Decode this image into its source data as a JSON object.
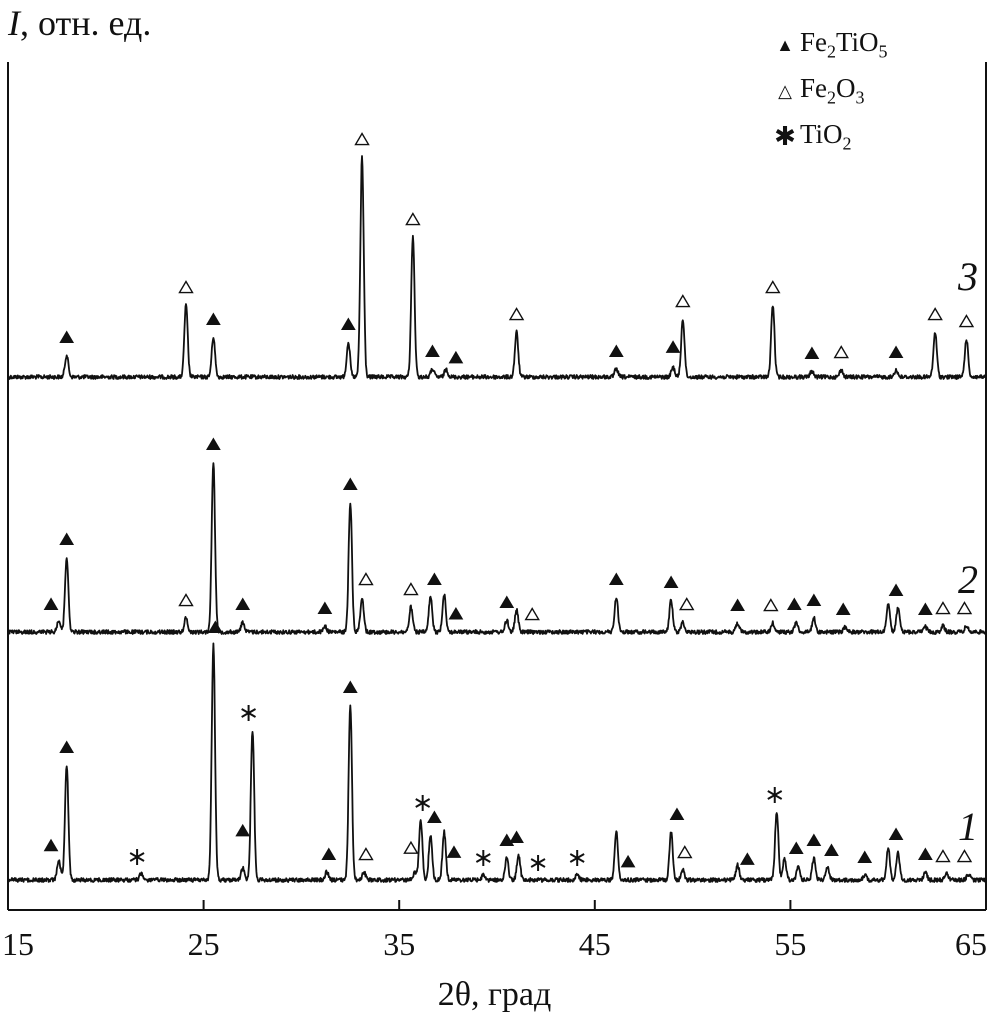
{
  "chart_data": {
    "type": "line",
    "title": "",
    "ylabel_symbol": "I",
    "ylabel_text": ", отн. ед.",
    "xlabel": "2θ, град",
    "xlim": [
      15,
      65
    ],
    "x_ticks": [
      15,
      25,
      35,
      45,
      55,
      65
    ],
    "legend": [
      {
        "marker": "filled-triangle",
        "text_html": "Fe<sub>2</sub>TiO<sub>5</sub>"
      },
      {
        "marker": "open-triangle",
        "text_html": "Fe<sub>2</sub>O<sub>3</sub>"
      },
      {
        "marker": "asterisk",
        "text_html": "TiO<sub>2</sub>"
      }
    ],
    "series": [
      {
        "name": "3",
        "baseline": 0,
        "peaks": [
          [
            18.0,
            22
          ],
          [
            24.1,
            72
          ],
          [
            25.5,
            40
          ],
          [
            32.4,
            35
          ],
          [
            33.1,
            220
          ],
          [
            35.7,
            140
          ],
          [
            36.7,
            8
          ],
          [
            37.4,
            8
          ],
          [
            41.0,
            45
          ],
          [
            46.1,
            8
          ],
          [
            49.0,
            10
          ],
          [
            49.5,
            58
          ],
          [
            54.1,
            72
          ],
          [
            56.1,
            6
          ],
          [
            57.6,
            7
          ],
          [
            60.4,
            7
          ],
          [
            62.4,
            45
          ],
          [
            64.0,
            38
          ]
        ],
        "markers": [
          [
            "filled",
            18.0
          ],
          [
            "open",
            24.1
          ],
          [
            "filled",
            25.5
          ],
          [
            "filled",
            32.4
          ],
          [
            "open",
            33.1
          ],
          [
            "open",
            35.7
          ],
          [
            "filled",
            36.7
          ],
          [
            "filled",
            37.9
          ],
          [
            "open",
            41.0
          ],
          [
            "filled",
            46.1
          ],
          [
            "filled",
            49.0
          ],
          [
            "open",
            49.5
          ],
          [
            "open",
            54.1
          ],
          [
            "filled",
            56.1
          ],
          [
            "open",
            57.6
          ],
          [
            "filled",
            60.4
          ],
          [
            "open",
            62.4
          ],
          [
            "open",
            64.0
          ]
        ]
      },
      {
        "name": "2",
        "baseline": 0,
        "peaks": [
          [
            17.6,
            12
          ],
          [
            18.0,
            75
          ],
          [
            24.1,
            14
          ],
          [
            25.5,
            170
          ],
          [
            27.0,
            10
          ],
          [
            31.2,
            6
          ],
          [
            32.5,
            130
          ],
          [
            33.1,
            35
          ],
          [
            35.6,
            25
          ],
          [
            36.6,
            35
          ],
          [
            37.3,
            38
          ],
          [
            40.5,
            12
          ],
          [
            41.0,
            22
          ],
          [
            46.1,
            35
          ],
          [
            48.9,
            32
          ],
          [
            49.5,
            10
          ],
          [
            52.3,
            9
          ],
          [
            54.1,
            9
          ],
          [
            55.3,
            10
          ],
          [
            56.2,
            14
          ],
          [
            57.8,
            5
          ],
          [
            60.0,
            28
          ],
          [
            60.5,
            24
          ],
          [
            61.9,
            5
          ],
          [
            62.8,
            6
          ],
          [
            64.0,
            6
          ]
        ],
        "markers": [
          [
            "filled",
            17.2
          ],
          [
            "filled",
            18.0
          ],
          [
            "open",
            24.1
          ],
          [
            "filled",
            25.5
          ],
          [
            "filled",
            27.0
          ],
          [
            "filled",
            31.2
          ],
          [
            "filled",
            32.5
          ],
          [
            "open",
            33.3
          ],
          [
            "open",
            35.6
          ],
          [
            "filled",
            36.8
          ],
          [
            "filled",
            37.9
          ],
          [
            "filled",
            40.5
          ],
          [
            "open",
            41.8
          ],
          [
            "filled",
            46.1
          ],
          [
            "filled",
            48.9
          ],
          [
            "open",
            49.7
          ],
          [
            "filled",
            52.3
          ],
          [
            "open",
            54.0
          ],
          [
            "filled",
            55.2
          ],
          [
            "filled",
            56.2
          ],
          [
            "filled",
            57.7
          ],
          [
            "filled",
            60.4
          ],
          [
            "filled",
            61.9
          ],
          [
            "open",
            62.8
          ],
          [
            "open",
            63.9
          ]
        ]
      },
      {
        "name": "1",
        "baseline": 0,
        "peaks": [
          [
            17.6,
            20
          ],
          [
            18.0,
            115
          ],
          [
            21.8,
            6
          ],
          [
            25.5,
            235
          ],
          [
            27.0,
            12
          ],
          [
            27.5,
            150
          ],
          [
            31.3,
            8
          ],
          [
            32.5,
            175
          ],
          [
            33.2,
            8
          ],
          [
            35.8,
            8
          ],
          [
            36.1,
            60
          ],
          [
            36.6,
            45
          ],
          [
            37.3,
            48
          ],
          [
            39.3,
            5
          ],
          [
            40.5,
            22
          ],
          [
            41.1,
            25
          ],
          [
            44.1,
            5
          ],
          [
            46.1,
            48
          ],
          [
            48.9,
            48
          ],
          [
            49.5,
            10
          ],
          [
            52.3,
            15
          ],
          [
            54.3,
            68
          ],
          [
            54.7,
            22
          ],
          [
            55.4,
            14
          ],
          [
            56.2,
            22
          ],
          [
            56.9,
            12
          ],
          [
            58.8,
            5
          ],
          [
            60.0,
            32
          ],
          [
            60.5,
            28
          ],
          [
            61.9,
            8
          ],
          [
            63.0,
            6
          ],
          [
            64.1,
            6
          ]
        ],
        "markers": [
          [
            "filled",
            17.2
          ],
          [
            "filled",
            18.0
          ],
          [
            "star",
            21.6
          ],
          [
            "filled",
            25.6
          ],
          [
            "filled",
            27.0
          ],
          [
            "star",
            27.3
          ],
          [
            "filled",
            31.4
          ],
          [
            "filled",
            32.5
          ],
          [
            "open",
            33.3
          ],
          [
            "open",
            35.6
          ],
          [
            "star",
            36.2
          ],
          [
            "filled",
            36.8
          ],
          [
            "filled",
            37.8
          ],
          [
            "star",
            39.3
          ],
          [
            "filled",
            40.5
          ],
          [
            "filled",
            41.0
          ],
          [
            "star",
            42.1
          ],
          [
            "star",
            44.1
          ],
          [
            "filled",
            46.7
          ],
          [
            "filled",
            49.2
          ],
          [
            "open",
            49.6
          ],
          [
            "filled",
            52.8
          ],
          [
            "star",
            54.2
          ],
          [
            "filled",
            55.3
          ],
          [
            "filled",
            56.2
          ],
          [
            "filled",
            57.1
          ],
          [
            "filled",
            58.8
          ],
          [
            "filled",
            60.4
          ],
          [
            "filled",
            61.9
          ],
          [
            "open",
            62.8
          ],
          [
            "open",
            63.9
          ]
        ]
      }
    ]
  }
}
